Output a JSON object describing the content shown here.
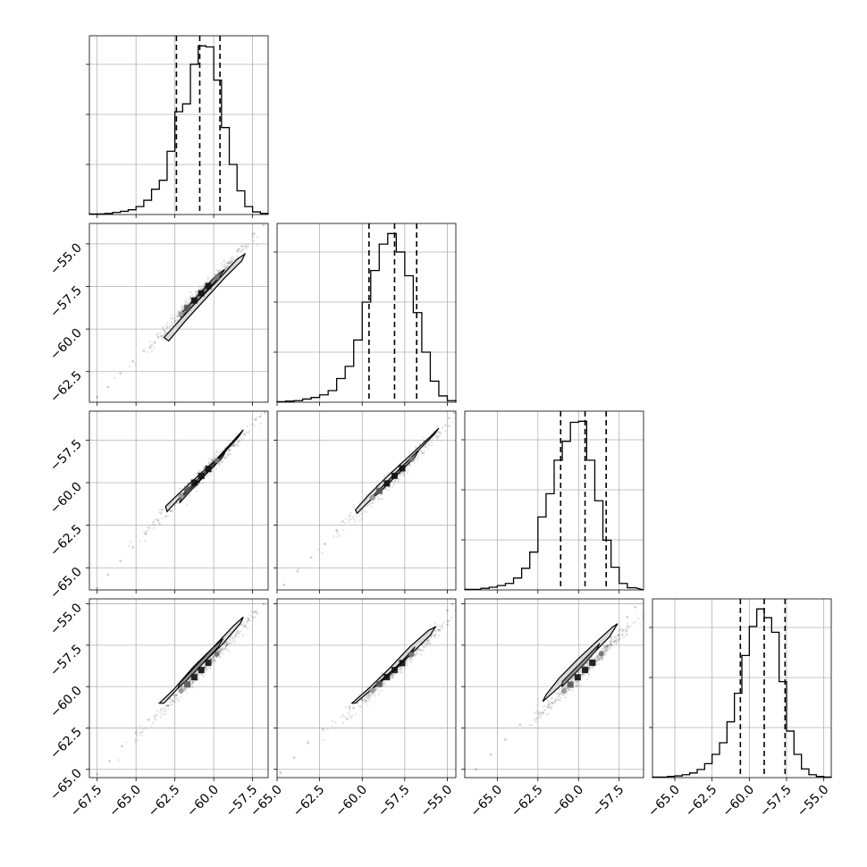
{
  "chart_data": {
    "type": "scatter",
    "subtype": "corner-plot",
    "title": "",
    "n_params": 4,
    "grid": true,
    "quantile_lines": "dashed",
    "params": [
      {
        "name": "",
        "range": [
          -68.0,
          -56.5
        ],
        "ticks": [
          -67.5,
          -65.0,
          -62.5,
          -60.0,
          -57.5
        ],
        "tick_labels": [
          "−67.5",
          "−65.0",
          "−62.5",
          "−60.0",
          "−57.5"
        ],
        "quantiles": [
          -62.4,
          -60.9,
          -59.6
        ],
        "hist_edges": [
          -68.0,
          -67.5,
          -67.0,
          -66.5,
          -66.0,
          -65.5,
          -65.0,
          -64.5,
          -64.0,
          -63.5,
          -63.0,
          -62.5,
          -62.0,
          -61.5,
          -61.0,
          -60.5,
          -60.0,
          -59.5,
          -59.0,
          -58.5,
          -58.0,
          -57.5,
          -57.0,
          -56.5
        ],
        "hist_counts": [
          1,
          1,
          2,
          4,
          6,
          9,
          15,
          27,
          48,
          65,
          120,
          195,
          210,
          285,
          320,
          318,
          255,
          165,
          95,
          45,
          15,
          5,
          2
        ]
      },
      {
        "name": "",
        "range": [
          -65.0,
          -54.5
        ],
        "ticks": [
          -65.0,
          -62.5,
          -60.0,
          -57.5,
          -55.0
        ],
        "tick_labels": [
          "−65.0",
          "−62.5",
          "−60.0",
          "−57.5",
          "−55.0"
        ],
        "quantiles": [
          -59.6,
          -58.1,
          -56.8
        ],
        "hist_edges": [
          -65.0,
          -64.5,
          -64.0,
          -63.5,
          -63.0,
          -62.5,
          -62.0,
          -61.5,
          -61.0,
          -60.5,
          -60.0,
          -59.5,
          -59.0,
          -58.5,
          -58.0,
          -57.5,
          -57.0,
          -56.5,
          -56.0,
          -55.5,
          -55.0,
          -54.5
        ],
        "hist_counts": [
          1,
          2,
          3,
          6,
          9,
          14,
          22,
          45,
          68,
          118,
          190,
          250,
          300,
          320,
          285,
          240,
          170,
          95,
          40,
          12,
          3
        ]
      },
      {
        "name": "",
        "range": [
          -67.0,
          -56.0
        ],
        "ticks": [
          -65.0,
          -62.5,
          -60.0,
          -57.5
        ],
        "tick_labels": [
          "−65.0",
          "−62.5",
          "−60.0",
          "−57.5"
        ],
        "quantiles": [
          -61.1,
          -59.6,
          -58.3
        ],
        "hist_edges": [
          -67.0,
          -66.5,
          -66.0,
          -65.5,
          -65.0,
          -64.5,
          -64.0,
          -63.5,
          -63.0,
          -62.5,
          -62.0,
          -61.5,
          -61.0,
          -60.5,
          -60.0,
          -59.5,
          -59.0,
          -58.5,
          -58.0,
          -57.5,
          -57.0,
          -56.5,
          -56.0
        ],
        "hist_counts": [
          1,
          1,
          3,
          5,
          8,
          12,
          22,
          40,
          70,
          135,
          178,
          240,
          275,
          310,
          312,
          240,
          165,
          92,
          42,
          12,
          4
        ]
      },
      {
        "name": "",
        "range": [
          -66.5,
          -54.5
        ],
        "ticks": [
          -65.0,
          -62.5,
          -60.0,
          -57.5,
          -55.0
        ],
        "tick_labels": [
          "−65.0",
          "−62.5",
          "−60.0",
          "−57.5",
          "−55.0"
        ],
        "quantiles": [
          -60.6,
          -59.0,
          -57.6
        ],
        "hist_edges": [
          -66.5,
          -66.0,
          -65.5,
          -65.0,
          -64.5,
          -64.0,
          -63.5,
          -63.0,
          -62.5,
          -62.0,
          -61.5,
          -61.0,
          -60.5,
          -60.0,
          -59.5,
          -59.0,
          -58.5,
          -58.0,
          -57.5,
          -57.0,
          -56.5,
          -56.0,
          -55.5,
          -55.0,
          -54.5
        ],
        "hist_counts": [
          1,
          1,
          2,
          3,
          5,
          8,
          14,
          24,
          40,
          60,
          96,
          145,
          210,
          260,
          290,
          275,
          250,
          165,
          80,
          40,
          15,
          5,
          2,
          1
        ]
      }
    ],
    "y_axes": [
      {
        "param": 1,
        "range": [
          -64.3,
          -53.8
        ],
        "ticks": [
          -55.0,
          -57.5,
          -60.0,
          -62.5
        ],
        "tick_labels": [
          "−55.0",
          "−57.5",
          "−60.0",
          "−62.5"
        ]
      },
      {
        "param": 2,
        "range": [
          -66.3,
          -55.8
        ],
        "ticks": [
          -57.5,
          -60.0,
          -62.5,
          -65.0
        ],
        "tick_labels": [
          "−57.5",
          "−60.0",
          "−62.5",
          "−65.0"
        ]
      },
      {
        "param": 3,
        "range": [
          -65.5,
          -54.7
        ],
        "ticks": [
          -55.0,
          -57.5,
          -60.0,
          -62.5,
          -65.0
        ],
        "tick_labels": [
          "−55.0",
          "−57.5",
          "−60.0",
          "−62.5",
          "−65.0"
        ]
      }
    ],
    "x_axis_labels": [
      "",
      "",
      "",
      ""
    ],
    "pairs": [
      {
        "x_param": 0,
        "y_param": 1,
        "contour_outer": [
          [
            -63.2,
            -60.5
          ],
          [
            -62.4,
            -59.7
          ],
          [
            -61.2,
            -58.5
          ],
          [
            -59.8,
            -57.2
          ],
          [
            -58.5,
            -55.9
          ],
          [
            -58.0,
            -55.6
          ],
          [
            -58.2,
            -56.0
          ],
          [
            -59.3,
            -57.0
          ],
          [
            -60.5,
            -58.2
          ],
          [
            -61.8,
            -59.5
          ],
          [
            -62.9,
            -60.7
          ]
        ],
        "contour_inner": [
          [
            -62.0,
            -59.0
          ],
          [
            -61.0,
            -58.0
          ],
          [
            -60.0,
            -57.0
          ],
          [
            -59.3,
            -56.5
          ],
          [
            -59.6,
            -56.9
          ],
          [
            -60.6,
            -57.9
          ],
          [
            -61.6,
            -58.9
          ],
          [
            -62.1,
            -59.3
          ]
        ],
        "mean": [
          -60.8,
          -57.9
        ],
        "spread_sd": 1.6,
        "scatter_tail": [
          [
            -67.5,
            -64.0
          ],
          [
            -66.8,
            -63.4
          ],
          [
            -66.0,
            -62.6
          ],
          [
            -65.2,
            -61.9
          ],
          [
            -64.5,
            -61.3
          ],
          [
            -63.8,
            -60.8
          ],
          [
            -57.4,
            -54.4
          ],
          [
            -56.8,
            -53.9
          ]
        ]
      },
      {
        "x_param": 0,
        "y_param": 2,
        "contour_outer": [
          [
            -63.1,
            -61.4
          ],
          [
            -62.2,
            -60.6
          ],
          [
            -61.0,
            -59.6
          ],
          [
            -59.8,
            -58.6
          ],
          [
            -58.6,
            -57.4
          ],
          [
            -58.1,
            -56.9
          ],
          [
            -58.4,
            -57.3
          ],
          [
            -59.6,
            -58.5
          ],
          [
            -60.8,
            -59.6
          ],
          [
            -62.1,
            -60.8
          ],
          [
            -63.0,
            -61.7
          ]
        ],
        "contour_inner": [
          [
            -62.1,
            -60.9
          ],
          [
            -61.1,
            -60.0
          ],
          [
            -60.0,
            -59.0
          ],
          [
            -59.2,
            -58.1
          ],
          [
            -59.5,
            -58.6
          ],
          [
            -60.5,
            -59.5
          ],
          [
            -61.5,
            -60.5
          ],
          [
            -62.2,
            -61.2
          ]
        ],
        "mean": [
          -60.8,
          -59.6
        ],
        "spread_sd": 1.6,
        "scatter_tail": [
          [
            -67.5,
            -66.2
          ],
          [
            -66.8,
            -65.4
          ],
          [
            -66.0,
            -64.6
          ],
          [
            -65.2,
            -63.8
          ],
          [
            -64.4,
            -63.0
          ],
          [
            -63.6,
            -62.2
          ],
          [
            -57.3,
            -56.3
          ],
          [
            -56.7,
            -55.9
          ]
        ]
      },
      {
        "x_param": 1,
        "y_param": 2,
        "contour_outer": [
          [
            -60.4,
            -61.6
          ],
          [
            -59.6,
            -60.7
          ],
          [
            -58.5,
            -59.6
          ],
          [
            -57.3,
            -58.5
          ],
          [
            -56.0,
            -57.3
          ],
          [
            -55.5,
            -56.8
          ],
          [
            -55.8,
            -57.2
          ],
          [
            -56.9,
            -58.3
          ],
          [
            -58.1,
            -59.5
          ],
          [
            -59.3,
            -60.8
          ],
          [
            -60.3,
            -61.8
          ]
        ],
        "contour_inner": [
          [
            -59.3,
            -60.7
          ],
          [
            -58.3,
            -59.7
          ],
          [
            -57.4,
            -58.8
          ],
          [
            -56.7,
            -58.1
          ],
          [
            -56.9,
            -58.5
          ],
          [
            -57.9,
            -59.5
          ],
          [
            -58.9,
            -60.5
          ],
          [
            -59.5,
            -61.0
          ]
        ],
        "mean": [
          -58.1,
          -59.6
        ],
        "spread_sd": 1.5,
        "scatter_tail": [
          [
            -64.6,
            -66.0
          ],
          [
            -63.8,
            -65.2
          ],
          [
            -63.0,
            -64.4
          ],
          [
            -62.2,
            -63.6
          ],
          [
            -61.5,
            -62.8
          ],
          [
            -54.9,
            -56.2
          ],
          [
            -54.6,
            -55.9
          ]
        ]
      },
      {
        "x_param": 0,
        "y_param": 3,
        "contour_outer": [
          [
            -63.5,
            -61.0
          ],
          [
            -62.6,
            -60.2
          ],
          [
            -61.3,
            -58.8
          ],
          [
            -60.0,
            -57.6
          ],
          [
            -58.7,
            -56.3
          ],
          [
            -58.1,
            -55.8
          ],
          [
            -58.3,
            -56.2
          ],
          [
            -59.4,
            -57.4
          ],
          [
            -60.7,
            -58.6
          ],
          [
            -62.0,
            -59.8
          ],
          [
            -63.2,
            -61.0
          ]
        ],
        "contour_inner": [
          [
            -62.2,
            -59.8
          ],
          [
            -61.2,
            -58.8
          ],
          [
            -60.1,
            -57.7
          ],
          [
            -59.4,
            -57.1
          ],
          [
            -59.7,
            -57.6
          ],
          [
            -60.7,
            -58.6
          ],
          [
            -61.7,
            -59.6
          ],
          [
            -62.3,
            -60.1
          ]
        ],
        "mean": [
          -60.8,
          -59.0
        ],
        "spread_sd": 1.6,
        "scatter_tail": [
          [
            -67.5,
            -65.3
          ],
          [
            -66.7,
            -64.5
          ],
          [
            -65.9,
            -63.6
          ],
          [
            -65.0,
            -62.8
          ],
          [
            -64.2,
            -62.0
          ],
          [
            -57.3,
            -55.5
          ],
          [
            -56.8,
            -55.0
          ]
        ]
      },
      {
        "x_param": 1,
        "y_param": 3,
        "contour_outer": [
          [
            -60.6,
            -61.0
          ],
          [
            -59.6,
            -60.1
          ],
          [
            -58.4,
            -58.9
          ],
          [
            -57.2,
            -57.6
          ],
          [
            -56.1,
            -56.6
          ],
          [
            -55.7,
            -56.4
          ],
          [
            -56.0,
            -56.9
          ],
          [
            -57.1,
            -58.0
          ],
          [
            -58.3,
            -59.2
          ],
          [
            -59.6,
            -60.3
          ],
          [
            -60.4,
            -61.0
          ]
        ],
        "contour_inner": [
          [
            -59.4,
            -60.1
          ],
          [
            -58.5,
            -59.3
          ],
          [
            -57.6,
            -58.4
          ],
          [
            -56.9,
            -57.6
          ],
          [
            -57.2,
            -58.1
          ],
          [
            -58.1,
            -58.9
          ],
          [
            -59.0,
            -59.7
          ],
          [
            -59.6,
            -60.3
          ]
        ],
        "mean": [
          -58.1,
          -59.0
        ],
        "spread_sd": 1.5,
        "scatter_tail": [
          [
            -64.8,
            -65.2
          ],
          [
            -64.0,
            -64.3
          ],
          [
            -63.2,
            -63.4
          ],
          [
            -62.3,
            -62.6
          ],
          [
            -55.0,
            -55.4
          ],
          [
            -54.7,
            -55.0
          ]
        ]
      },
      {
        "x_param": 2,
        "y_param": 3,
        "contour_outer": [
          [
            -62.0,
            -60.5
          ],
          [
            -61.2,
            -59.5
          ],
          [
            -60.0,
            -58.3
          ],
          [
            -58.8,
            -57.2
          ],
          [
            -57.9,
            -56.4
          ],
          [
            -57.6,
            -56.2
          ],
          [
            -58.1,
            -57.0
          ],
          [
            -59.2,
            -58.1
          ],
          [
            -60.4,
            -59.3
          ],
          [
            -61.5,
            -60.3
          ],
          [
            -62.2,
            -60.9
          ]
        ],
        "contour_inner": [
          [
            -61.0,
            -59.7
          ],
          [
            -60.2,
            -58.9
          ],
          [
            -59.3,
            -58.0
          ],
          [
            -58.7,
            -57.4
          ],
          [
            -58.9,
            -57.8
          ],
          [
            -59.6,
            -58.6
          ],
          [
            -60.4,
            -59.4
          ],
          [
            -61.0,
            -60.0
          ]
        ],
        "mean": [
          -59.6,
          -59.0
        ],
        "spread_sd": 1.5,
        "scatter_tail": [
          [
            -66.3,
            -65.0
          ],
          [
            -65.4,
            -64.1
          ],
          [
            -64.5,
            -63.2
          ],
          [
            -63.6,
            -62.3
          ],
          [
            -57.0,
            -55.8
          ],
          [
            -56.5,
            -55.2
          ]
        ]
      }
    ]
  }
}
